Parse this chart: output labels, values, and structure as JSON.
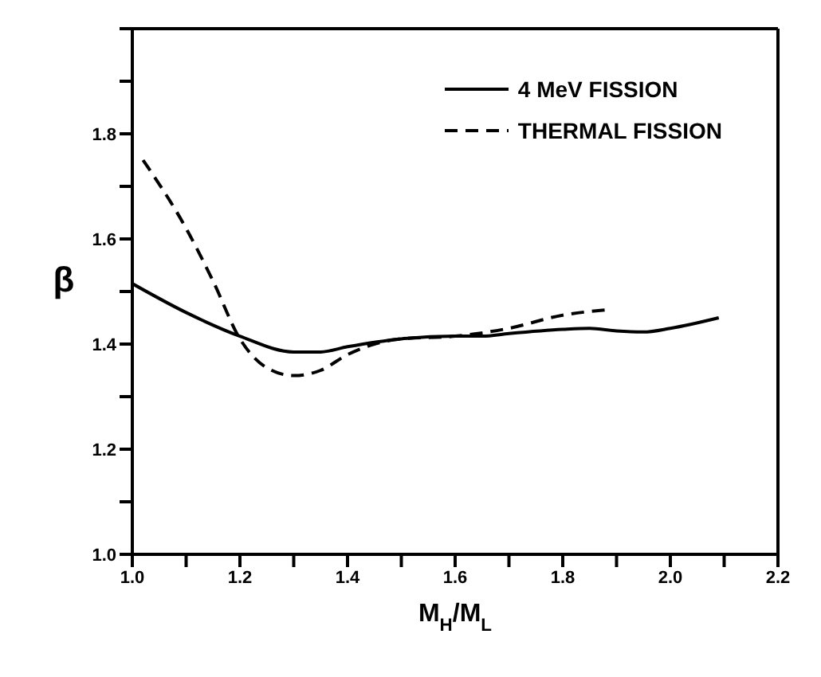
{
  "chart_data": {
    "type": "line",
    "xlabel": "M$_{H}$/M$_{L}$",
    "ylabel": "β",
    "xlim": [
      1.0,
      2.2
    ],
    "ylim": [
      1.0,
      2.0
    ],
    "xticks": [
      {
        "value": 1.0,
        "label": "1.0"
      },
      {
        "value": 1.1,
        "label": null
      },
      {
        "value": 1.2,
        "label": "1.2"
      },
      {
        "value": 1.3,
        "label": null
      },
      {
        "value": 1.4,
        "label": "1.4"
      },
      {
        "value": 1.5,
        "label": null
      },
      {
        "value": 1.6,
        "label": "1.6"
      },
      {
        "value": 1.7,
        "label": null
      },
      {
        "value": 1.8,
        "label": "1.8"
      },
      {
        "value": 1.9,
        "label": null
      },
      {
        "value": 2.0,
        "label": "2.0"
      },
      {
        "value": 2.1,
        "label": null
      },
      {
        "value": 2.2,
        "label": "2.2"
      }
    ],
    "yticks": [
      {
        "value": 1.0,
        "label": "1.0"
      },
      {
        "value": 1.1,
        "label": null
      },
      {
        "value": 1.2,
        "label": "1.2"
      },
      {
        "value": 1.3,
        "label": null
      },
      {
        "value": 1.4,
        "label": "1.4"
      },
      {
        "value": 1.5,
        "label": null
      },
      {
        "value": 1.6,
        "label": "1.6"
      },
      {
        "value": 1.7,
        "label": null
      },
      {
        "value": 1.8,
        "label": "1.8"
      },
      {
        "value": 1.9,
        "label": null
      },
      {
        "value": 2.0,
        "label": null
      }
    ],
    "grid": false,
    "legend": "top right",
    "marker": "none",
    "series": [
      {
        "name": "4 MeV FISSION",
        "color": "#000000",
        "line_style": "solid",
        "x": [
          1.0,
          1.1,
          1.2,
          1.3,
          1.35,
          1.4,
          1.5,
          1.6,
          1.65,
          1.7,
          1.8,
          1.85,
          1.9,
          1.95,
          2.0,
          2.09
        ],
        "values": [
          1.515,
          1.46,
          1.415,
          1.385,
          1.385,
          1.395,
          1.41,
          1.415,
          1.415,
          1.42,
          1.428,
          1.43,
          1.425,
          1.423,
          1.43,
          1.45
        ]
      },
      {
        "name": "THERMAL FISSION",
        "color": "#000000",
        "line_style": "dashed",
        "x": [
          1.02,
          1.1,
          1.15,
          1.2,
          1.25,
          1.3,
          1.35,
          1.4,
          1.45,
          1.5,
          1.6,
          1.7,
          1.8,
          1.88
        ],
        "values": [
          1.75,
          1.62,
          1.52,
          1.41,
          1.355,
          1.34,
          1.35,
          1.38,
          1.4,
          1.41,
          1.415,
          1.43,
          1.455,
          1.465
        ]
      }
    ]
  }
}
